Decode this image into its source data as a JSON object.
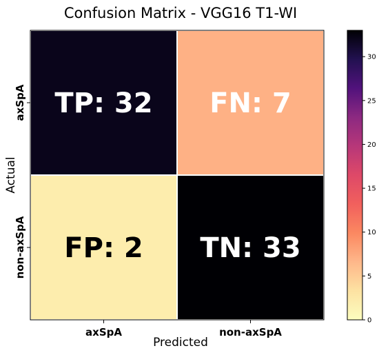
{
  "chart_data": {
    "type": "heatmap",
    "title": "Confusion Matrix - VGG16 T1-WI",
    "xlabel": "Predicted",
    "ylabel": "Actual",
    "x_categories": [
      "axSpA",
      "non-axSpA"
    ],
    "y_categories": [
      "axSpA",
      "non-axSpA"
    ],
    "values": [
      [
        32,
        7
      ],
      [
        2,
        33
      ]
    ],
    "cell_labels": [
      [
        "TP: 32",
        "FN: 7"
      ],
      [
        "FP: 2",
        "TN: 33"
      ]
    ],
    "colorbar": {
      "range": [
        0,
        33
      ],
      "ticks": [
        "0",
        "5",
        "10",
        "15",
        "20",
        "25",
        "30"
      ],
      "colormap": "magma_r"
    },
    "cell_text_colors": [
      [
        "#ffffff",
        "#ffffff"
      ],
      [
        "#000000",
        "#ffffff"
      ]
    ],
    "grid": false
  }
}
